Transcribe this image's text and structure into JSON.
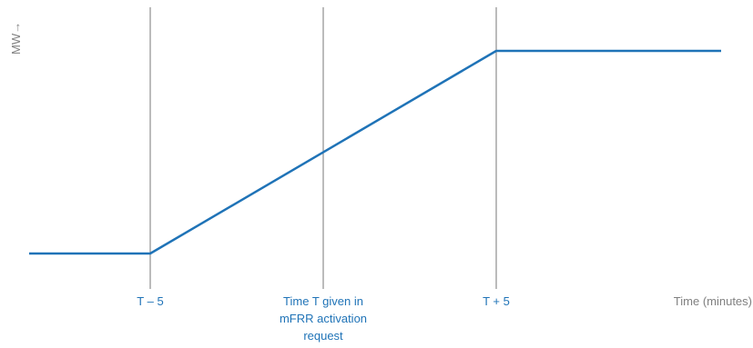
{
  "chart_data": {
    "type": "line",
    "ylabel": "MW→",
    "xlabel": "Time (minutes)",
    "x_ticks": [
      {
        "x": -5,
        "label_lines": [
          "T – 5"
        ]
      },
      {
        "x": 0,
        "label_lines": [
          "Time T given in",
          "mFRR activation",
          "request"
        ]
      },
      {
        "x": 5,
        "label_lines": [
          "T + 5"
        ]
      }
    ],
    "series": [
      {
        "points": [
          [
            -8.5,
            0.0
          ],
          [
            -5,
            0.0
          ],
          [
            5,
            1.0
          ],
          [
            11.5,
            1.0
          ]
        ]
      }
    ],
    "xlim": [
      -9,
      12
    ],
    "ylim": [
      -0.15,
      1.2
    ],
    "vertical_gridlines_at_ticks": true,
    "colors": {
      "line": "#1f73b7",
      "gridline": "#555555",
      "tick_label": "#1f73b7",
      "axis_label": "#808080"
    }
  }
}
